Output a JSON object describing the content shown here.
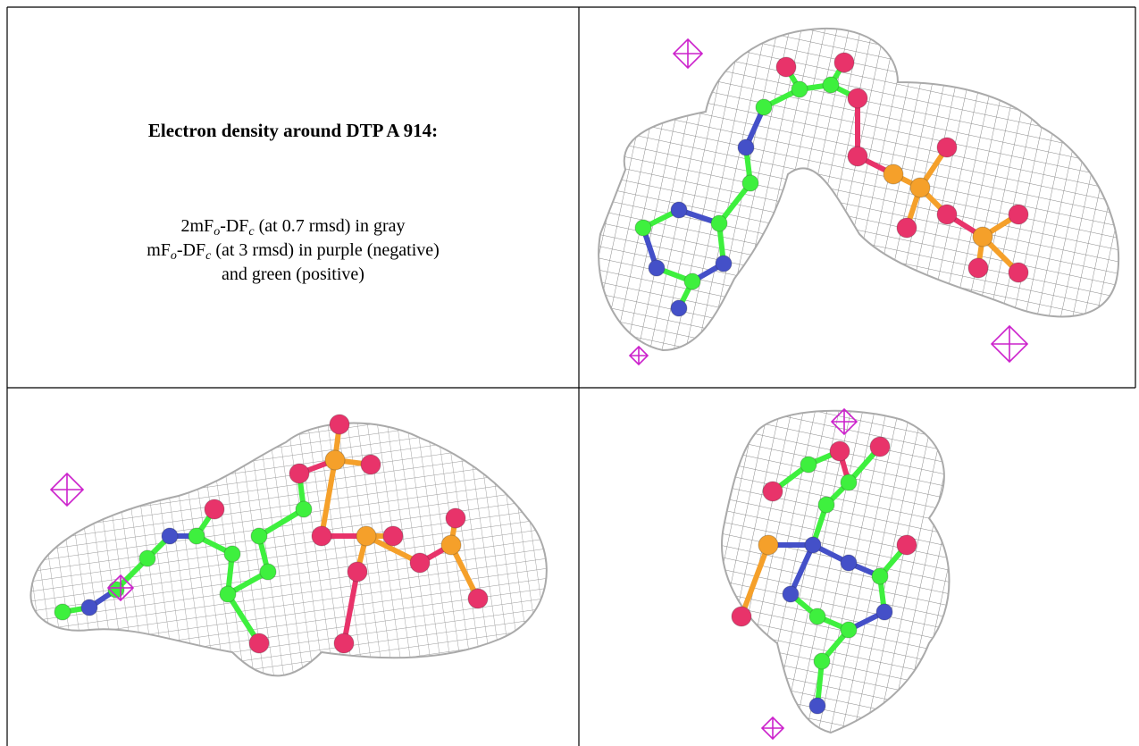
{
  "legend": {
    "title": "Electron density around DTP A 914:",
    "lines": [
      [
        "2mF",
        "o",
        "-DF",
        "c",
        " (at 0.7 rmsd) in gray"
      ],
      [
        "mF",
        "o",
        "-DF",
        "c",
        " (at 3 rmsd) in purple (negative)"
      ],
      [
        "and green (positive)"
      ]
    ]
  }
}
